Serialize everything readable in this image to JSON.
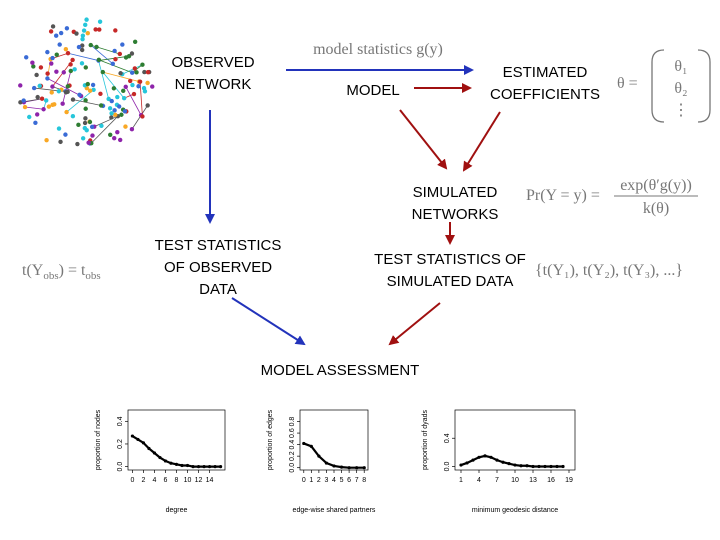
{
  "nodes": {
    "observed": [
      "OBSERVED",
      "NETWORK"
    ],
    "model": [
      "MODEL"
    ],
    "estimated": [
      "ESTIMATED",
      "COEFFICIENTS"
    ],
    "simulated": [
      "SIMULATED",
      "NETWORKS"
    ],
    "test_observed": [
      "TEST STATISTICS",
      "OF OBSERVED",
      "DATA"
    ],
    "test_simulated": [
      "TEST STATISTICS OF",
      "SIMULATED DATA"
    ],
    "assessment": [
      "MODEL ASSESSMENT"
    ]
  },
  "formulas": {
    "model_statistics": "model statistics g(y)",
    "theta_lhs": "θ =",
    "theta_vector": [
      "θ₁",
      "θ₂",
      "⋮"
    ],
    "probability_lhs": "Pr(Y = y) =",
    "probability_numerator": "exp(θ′g(y))",
    "probability_denominator": "k(θ)",
    "observed_stat": [
      "t(Y",
      "obs",
      ") = t",
      "obs"
    ],
    "simulated_stats": "{t(Y₁), t(Y₂), t(Y₃), ...}"
  },
  "plots": [
    {
      "type": "line",
      "xlabel": "degree",
      "ylabel": "proportion of nodes",
      "x": [
        0,
        1,
        2,
        3,
        4,
        5,
        6,
        7,
        8,
        9,
        10,
        11,
        12,
        13,
        14,
        15,
        16
      ],
      "values": [
        0.27,
        0.24,
        0.21,
        0.16,
        0.12,
        0.08,
        0.05,
        0.03,
        0.02,
        0.01,
        0.01,
        0,
        0,
        0,
        0,
        0,
        0
      ],
      "xlim": [
        -0.8,
        16.8
      ],
      "ylim": [
        -0.03,
        0.5
      ],
      "xticks": [
        0,
        2,
        4,
        6,
        8,
        10,
        12,
        14
      ],
      "yticks": [
        {
          "value": 0,
          "label": "0.0"
        },
        0.2,
        0.4
      ]
    },
    {
      "type": "line",
      "xlabel": "edge-wise shared partners",
      "ylabel": "proportion of edges",
      "x": [
        0,
        1,
        2,
        3,
        4,
        5,
        6,
        7,
        8
      ],
      "values": [
        0.42,
        0.37,
        0.2,
        0.08,
        0.03,
        0.01,
        0,
        0,
        0
      ],
      "xlim": [
        -0.5,
        8.5
      ],
      "ylim": [
        -0.04,
        1.0
      ],
      "xticks": [
        0,
        1,
        2,
        3,
        4,
        5,
        6,
        7,
        8
      ],
      "yticks": [
        {
          "value": 0,
          "label": "0.0"
        },
        0.2,
        0.4,
        0.6,
        0.8
      ]
    },
    {
      "type": "line",
      "xlabel": "minimum geodesic distance",
      "ylabel": "proportion of dyads",
      "x": [
        1,
        2,
        3,
        4,
        5,
        6,
        7,
        8,
        9,
        10,
        11,
        12,
        13,
        14,
        15,
        16,
        17,
        18
      ],
      "values": [
        0.02,
        0.05,
        0.09,
        0.13,
        0.15,
        0.13,
        0.09,
        0.06,
        0.04,
        0.02,
        0.01,
        0.01,
        0,
        0,
        0,
        0,
        0,
        0
      ],
      "xlim": [
        0,
        20
      ],
      "ylim": [
        -0.05,
        0.8
      ],
      "xticks": [
        1,
        4,
        7,
        10,
        13,
        16,
        19
      ],
      "yticks": [
        {
          "value": 0,
          "label": "0.0"
        },
        0.4
      ]
    }
  ]
}
